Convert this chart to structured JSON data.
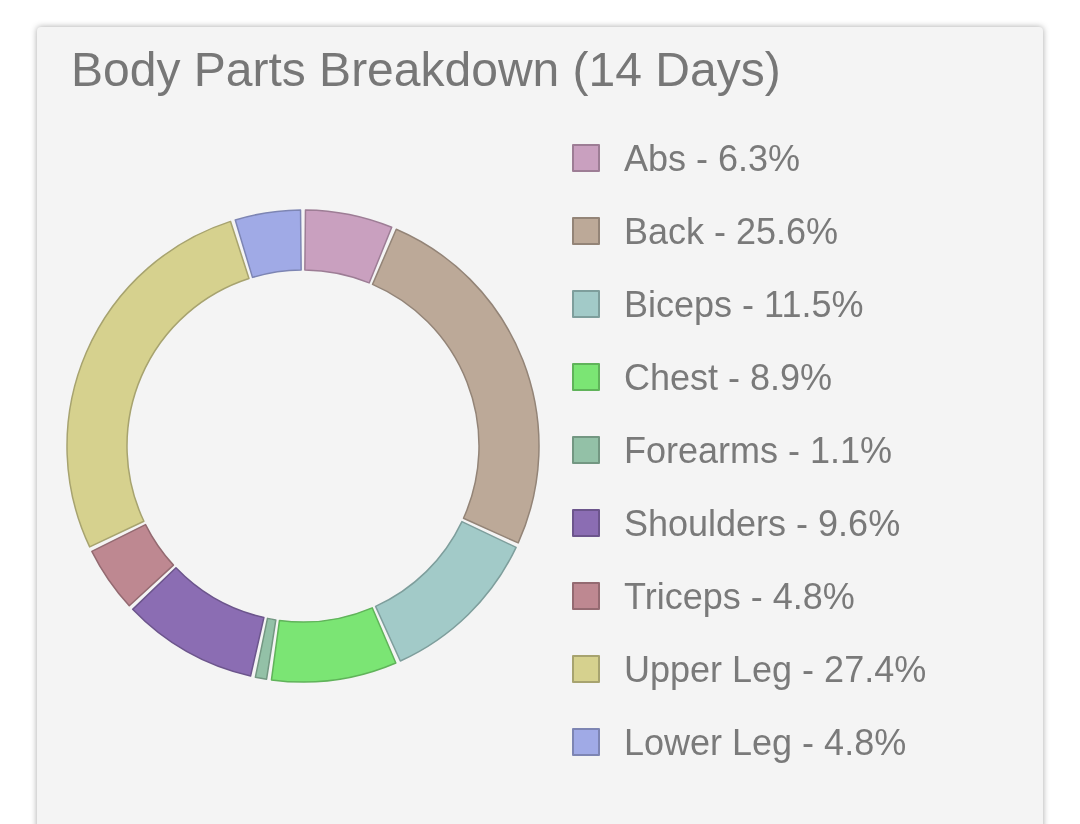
{
  "chart_data": {
    "type": "donut",
    "title": "Body Parts Breakdown (14 Days)",
    "categories": [
      "Abs - 6.3%",
      "Back - 25.6%",
      "Biceps - 11.5%",
      "Chest - 8.9%",
      "Forearms - 1.1%",
      "Shoulders - 9.6%",
      "Triceps - 4.8%",
      "Upper Leg - 27.4%",
      "Lower Leg - 4.8%"
    ],
    "values": [
      6.3,
      25.6,
      11.5,
      8.9,
      1.1,
      9.6,
      4.8,
      27.4,
      4.8
    ],
    "colors": [
      "#c9a0bf",
      "#bca998",
      "#a2cac8",
      "#7be574",
      "#93c1a7",
      "#8b6db3",
      "#be8891",
      "#d6d18e",
      "#a0aae6"
    ],
    "legend": "right"
  }
}
